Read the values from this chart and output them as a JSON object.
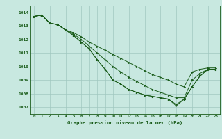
{
  "title": "Graphe pression niveau de la mer (hPa)",
  "background_color": "#c8e8e0",
  "grid_color": "#a0c8c0",
  "line_color": "#1a5c1a",
  "marker_color": "#1a5c1a",
  "xlim": [
    -0.5,
    23.5
  ],
  "ylim": [
    1006.5,
    1014.5
  ],
  "yticks": [
    1007,
    1008,
    1009,
    1010,
    1011,
    1012,
    1013,
    1014
  ],
  "xticks": [
    0,
    1,
    2,
    3,
    4,
    5,
    6,
    7,
    8,
    9,
    10,
    11,
    12,
    13,
    14,
    15,
    16,
    17,
    18,
    19,
    20,
    21,
    22,
    23
  ],
  "lines": [
    [
      1013.7,
      1013.8,
      1013.2,
      1013.1,
      1012.7,
      1012.5,
      1012.2,
      1011.8,
      1011.5,
      1011.2,
      1010.9,
      1010.6,
      1010.3,
      1010.0,
      1009.7,
      1009.4,
      1009.2,
      1009.0,
      1008.7,
      1008.5,
      1009.6,
      1009.8,
      1009.9,
      1009.9
    ],
    [
      1013.7,
      1013.8,
      1013.2,
      1013.1,
      1012.7,
      1012.4,
      1012.0,
      1011.5,
      1011.0,
      1010.5,
      1010.0,
      1009.6,
      1009.2,
      1008.9,
      1008.6,
      1008.3,
      1008.1,
      1007.9,
      1007.7,
      1007.7,
      1009.0,
      1009.5,
      1009.8,
      1009.8
    ],
    [
      1013.7,
      1013.8,
      1013.2,
      1013.1,
      1012.7,
      1012.3,
      1011.8,
      1011.3,
      1010.5,
      1009.8,
      1009.0,
      1008.7,
      1008.3,
      1008.1,
      1007.9,
      1007.8,
      1007.7,
      1007.6,
      1007.2,
      1007.6,
      1008.5,
      1009.3,
      1009.8,
      1009.8
    ],
    [
      1013.7,
      1013.8,
      1013.2,
      1013.1,
      1012.7,
      1012.3,
      1011.8,
      1011.3,
      1010.5,
      1009.8,
      1009.0,
      1008.7,
      1008.3,
      1008.1,
      1007.9,
      1007.8,
      1007.7,
      1007.6,
      1007.1,
      1007.6,
      1008.5,
      1009.3,
      1009.8,
      1009.8
    ]
  ]
}
